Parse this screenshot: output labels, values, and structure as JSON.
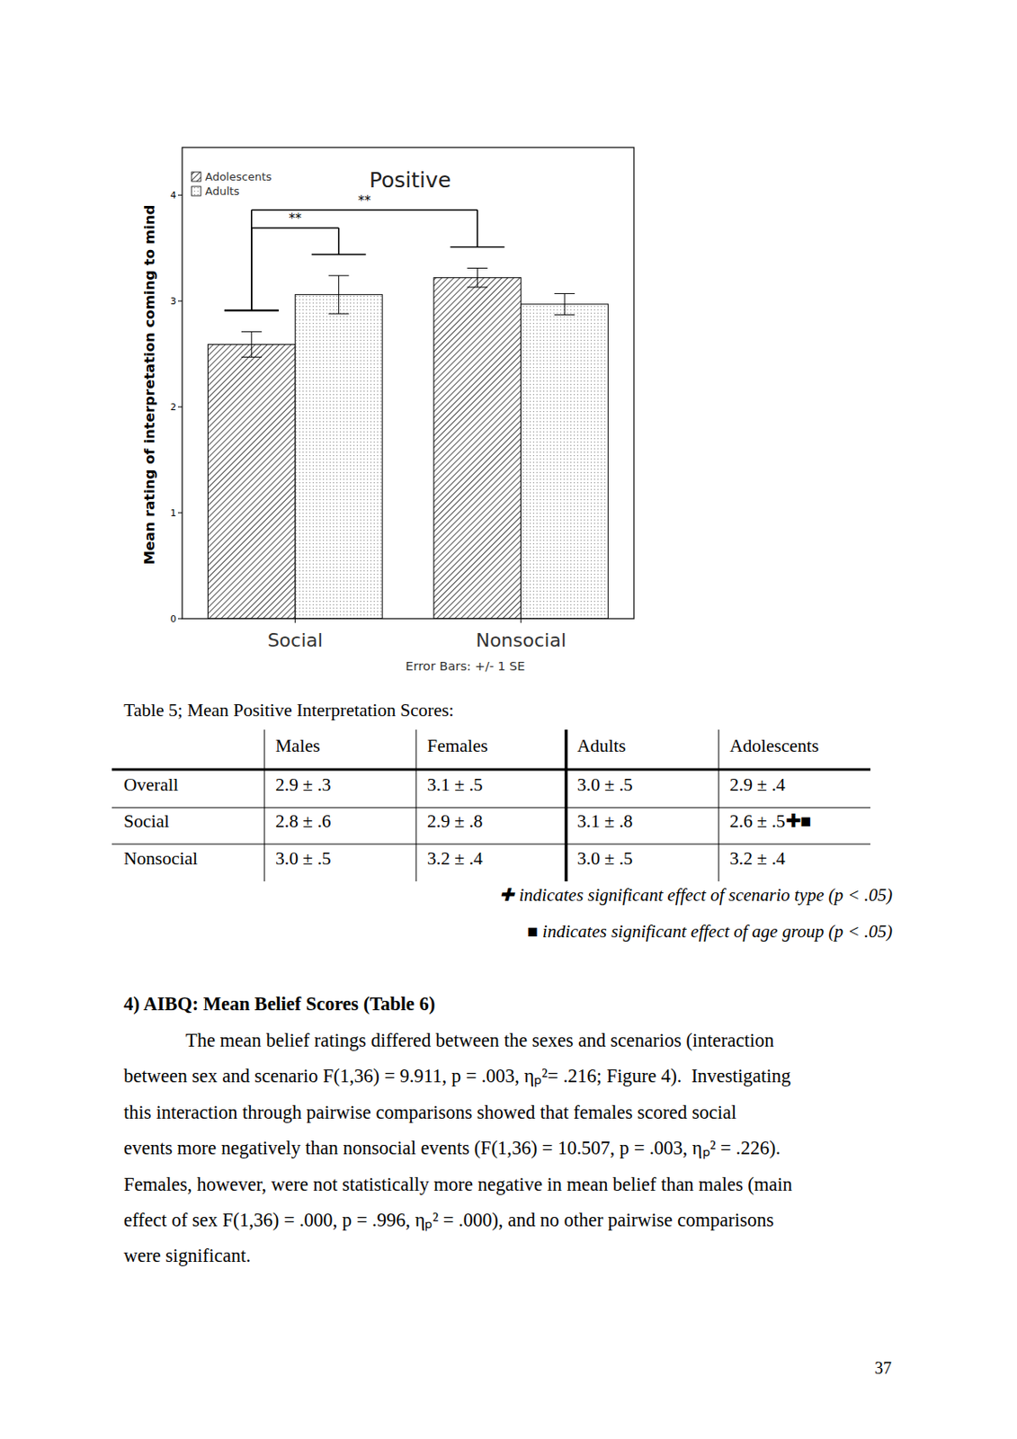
{
  "chart_data": {
    "type": "bar",
    "title": "Positive",
    "y_label": "Mean rating of interpretation coming to mind",
    "note": "Error Bars: +/- 1 SE",
    "categories": [
      "Social",
      "Nonsocial"
    ],
    "series": [
      {
        "name": "Adolescents",
        "color": "#000000",
        "values": [
          2.59,
          3.22
        ],
        "errors": [
          0.12,
          0.09
        ]
      },
      {
        "name": "Adults",
        "color": "#9a9a9a",
        "values": [
          3.06,
          2.97
        ],
        "errors": [
          0.18,
          0.1
        ]
      }
    ],
    "ylim": [
      0,
      4.45
    ],
    "yticks": [
      0,
      1,
      2,
      3,
      4
    ],
    "grid": false,
    "legend": "top-left",
    "annotations": [
      {
        "text": "**",
        "from": [
          0,
          0
        ],
        "to": [
          1,
          0
        ]
      },
      {
        "text": "**",
        "from": [
          0,
          0
        ],
        "to": [
          0,
          1
        ]
      }
    ]
  },
  "table": {
    "title": "Table 5; Mean Positive Interpretation Scores:",
    "header": [
      "Males",
      "Females",
      "Adults",
      "Adolescents"
    ],
    "rows": [
      {
        "label": "Overall",
        "cells": [
          "2.9 ± .3",
          "3.1 ± .5",
          "3.0 ± .5",
          "2.9 ± .4"
        ]
      },
      {
        "label": "Social",
        "cells": [
          "2.8 ± .6",
          "2.9 ± .8",
          "3.1 ± .8",
          "2.6 ± .5✚■"
        ]
      },
      {
        "label": "Nonsocial",
        "cells": [
          "3.0 ± .5",
          "3.2 ± .4",
          "3.0 ± .5",
          "3.2 ± .4"
        ]
      }
    ],
    "notes": [
      "✚ indicates significant effect of scenario type (p < .05)",
      "■ indicates significant effect of age group (p < .05)"
    ]
  },
  "section": {
    "heading": "4) AIBQ: Mean Belief Scores (Table 6)",
    "lines": [
      "The mean belief ratings differed between the sexes and scenarios (interaction",
      "between sex and scenario F(1,36) = 9.911, p = .003, ηₚ²= .216; Figure 4).  Investigating",
      "this interaction through pairwise comparisons showed that females scored social",
      "events more negatively than nonsocial events (F(1,36) = 10.507, p = .003, ηₚ² = .226).",
      "Females, however, were not statistically more negative in mean belief than males (main",
      "effect of sex F(1,36) = .000, p = .996, ηₚ² = .000), and no other pairwise comparisons",
      "were significant."
    ]
  },
  "page_number": "37"
}
